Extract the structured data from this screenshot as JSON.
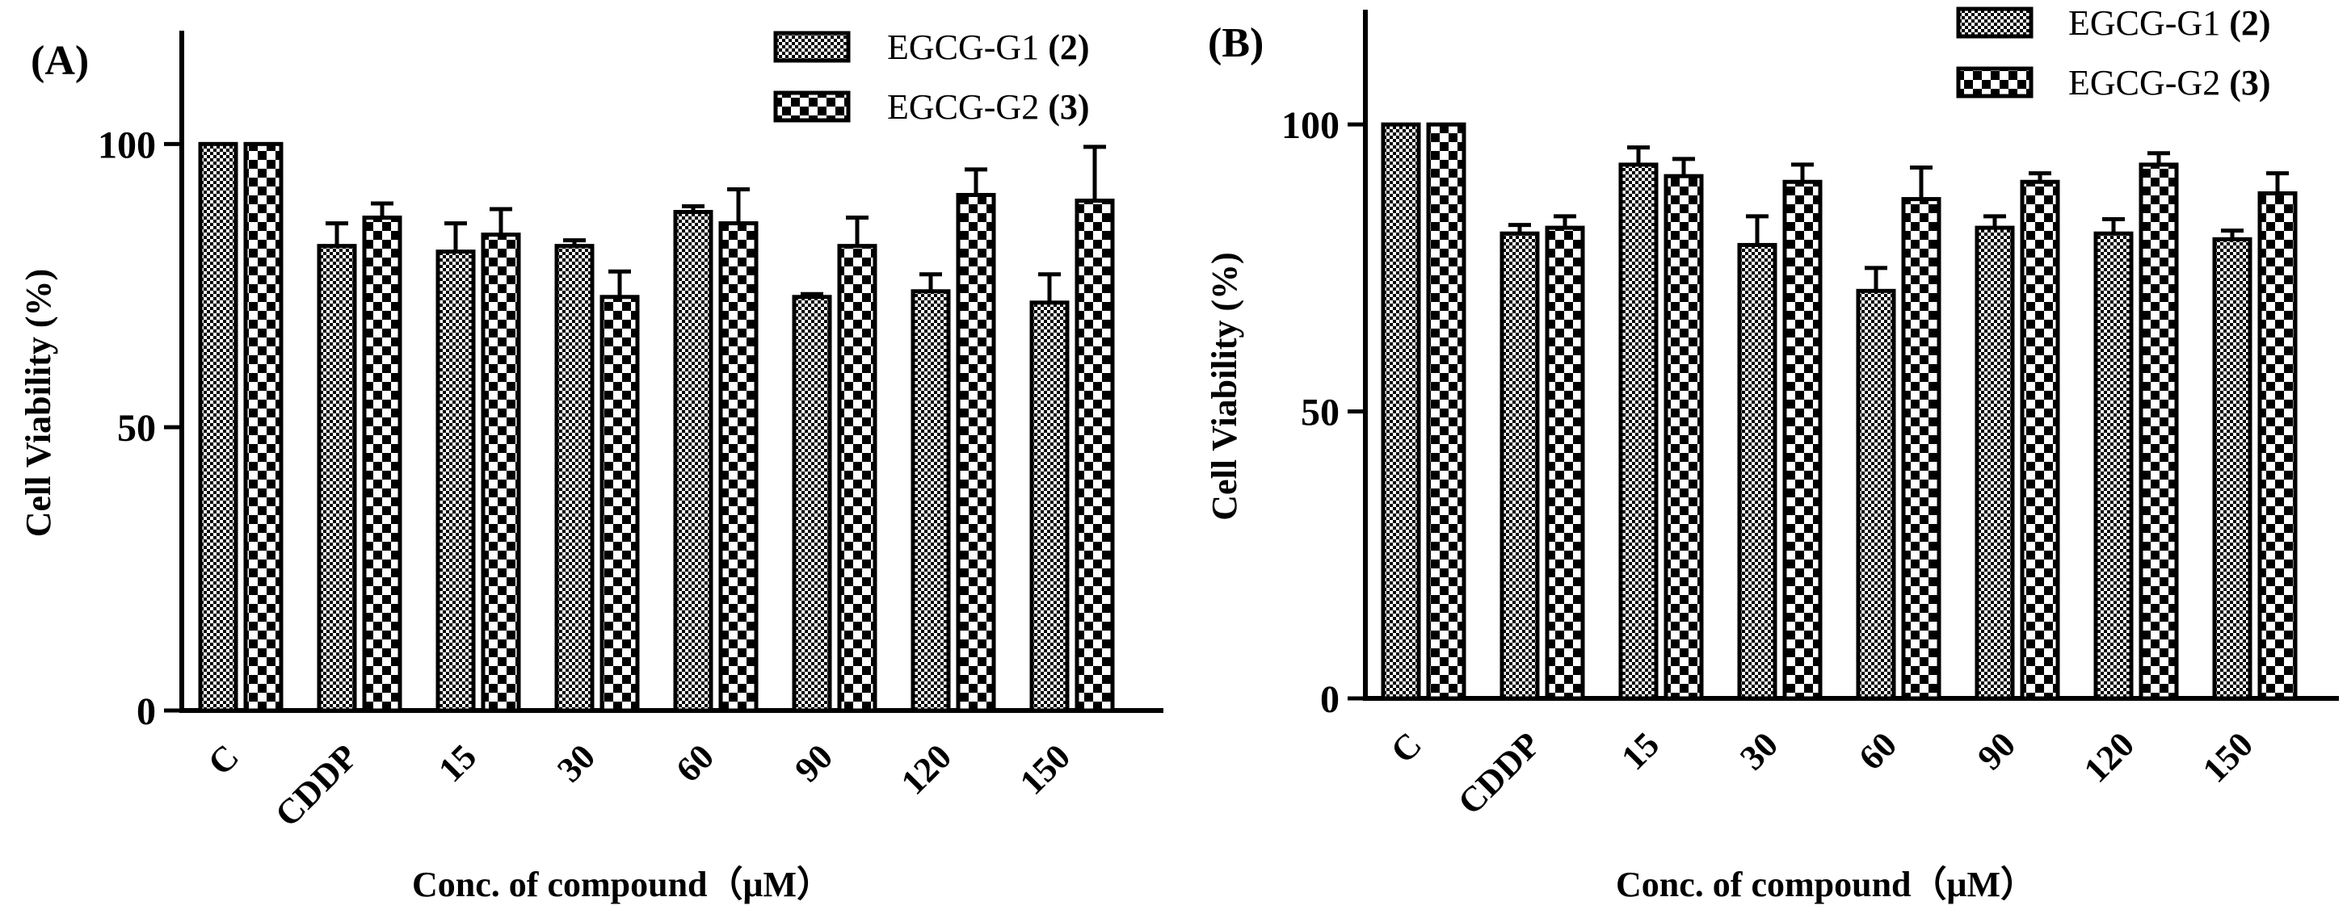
{
  "figure": {
    "colors": {
      "ink": "#000000",
      "paper": "#ffffff"
    }
  },
  "chart_data": [
    {
      "type": "bar",
      "panel_label": "(A)",
      "categories": [
        "C",
        "CDDP",
        "15",
        "30",
        "60",
        "90",
        "120",
        "150"
      ],
      "series": [
        {
          "name": "EGCG-G1",
          "number": "(2)",
          "pattern": "fine-checker",
          "values": [
            100,
            82,
            81,
            82,
            88,
            73,
            74,
            72
          ],
          "errors": [
            0,
            4,
            5,
            1,
            1,
            0.5,
            3,
            5
          ]
        },
        {
          "name": "EGCG-G2",
          "number": "(3)",
          "pattern": "coarse-checker",
          "values": [
            100,
            87,
            84,
            73,
            86,
            82,
            91,
            90
          ],
          "errors": [
            0,
            2.5,
            4.5,
            4.5,
            6,
            5,
            4.5,
            9.5
          ]
        }
      ],
      "yticks": [
        0,
        50,
        100
      ],
      "ylim": [
        0,
        120
      ],
      "xlabel": "Conc. of compound（μM）",
      "ylabel": "Cell Viability (%)",
      "legend": "top-right"
    },
    {
      "type": "bar",
      "panel_label": "(B)",
      "categories": [
        "C",
        "CDDP",
        "15",
        "30",
        "60",
        "90",
        "120",
        "150"
      ],
      "series": [
        {
          "name": "EGCG-G1",
          "number": "(2)",
          "pattern": "fine-checker",
          "values": [
            100,
            81,
            93,
            79,
            71,
            82,
            81,
            80
          ],
          "errors": [
            0,
            1.5,
            3,
            5,
            4,
            2,
            2.5,
            1.5
          ]
        },
        {
          "name": "EGCG-G2",
          "number": "(3)",
          "pattern": "coarse-checker",
          "values": [
            100,
            82,
            91,
            90,
            87,
            90,
            93,
            88
          ],
          "errors": [
            0,
            2,
            3,
            3,
            5.5,
            1.5,
            2,
            3.5
          ]
        }
      ],
      "yticks": [
        0,
        50,
        100
      ],
      "ylim": [
        0,
        120
      ],
      "xlabel": "Conc. of compound（μM）",
      "ylabel": "Cell Viability (%)",
      "legend": "top-right"
    }
  ]
}
